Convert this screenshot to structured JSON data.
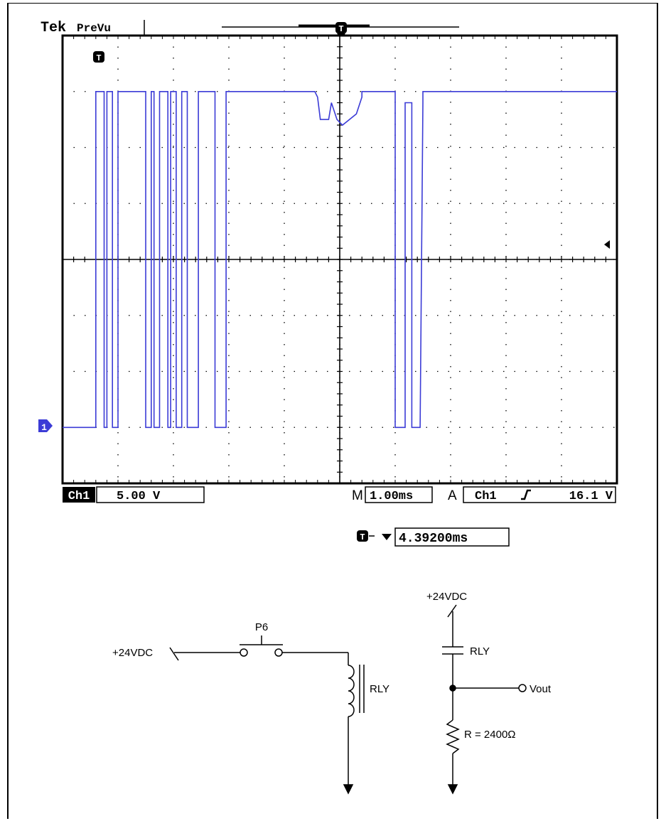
{
  "scope": {
    "brand": "Tek",
    "mode": "PreVu",
    "trigger_marker": "T",
    "channel_marker": "1",
    "channel_label": "Ch1",
    "volts_per_div": "5.00 V",
    "time_prefix": "M",
    "time_per_div": "1.00ms",
    "trigger_prefix": "A",
    "trigger_source": "Ch1",
    "trigger_slope_icon": "rising-edge-icon",
    "trigger_level": "16.1 V",
    "trigger_delay": "4.39200ms",
    "trace_color": "#3b3bd6",
    "grid": {
      "divisions_x": 10,
      "divisions_y": 8
    }
  },
  "chart_data": {
    "type": "line",
    "title": "",
    "xlabel": "",
    "ylabel": "",
    "x_unit": "ms",
    "y_unit": "V",
    "xlim": [
      0,
      10
    ],
    "ylim": [
      -5,
      35
    ],
    "series": [
      {
        "x": [
          0,
          0.6,
          0.6,
          0.75,
          0.75,
          0.8,
          0.8,
          0.9,
          0.9,
          1.0,
          1.0,
          1.5,
          1.5,
          1.6,
          1.6,
          1.65,
          1.65,
          1.75,
          1.75,
          1.9,
          1.9,
          1.95,
          1.95,
          2.05,
          2.05,
          2.15,
          2.15,
          2.25,
          2.25,
          2.45,
          2.45,
          2.75,
          2.75,
          2.95,
          2.95,
          4.55,
          4.6,
          4.65,
          4.8,
          4.85,
          4.95,
          5.05,
          5.3,
          5.4,
          5.4,
          6.0,
          6.0,
          6.18,
          6.18,
          6.3,
          6.3,
          6.45,
          6.5,
          6.5,
          10
        ],
        "y": [
          0,
          0,
          30,
          30,
          0,
          0,
          30,
          30,
          0,
          0,
          30,
          30,
          0,
          0,
          30,
          30,
          0,
          0,
          30,
          30,
          0,
          0,
          30,
          30,
          0,
          0,
          30,
          30,
          0,
          0,
          30,
          30,
          0,
          0,
          30,
          30,
          29.5,
          27.5,
          27.5,
          29,
          27.5,
          27,
          28,
          29.5,
          30,
          30,
          0,
          0,
          29,
          29,
          0,
          0,
          29,
          30,
          30
        ]
      }
    ],
    "grid": true
  },
  "schematic": {
    "supply1": "+24VDC",
    "switch_label": "P6",
    "coil_label": "RLY",
    "supply2": "+24VDC",
    "contact_label": "RLY",
    "output_label": "Vout",
    "resistor_label": "R = 2400Ω"
  }
}
